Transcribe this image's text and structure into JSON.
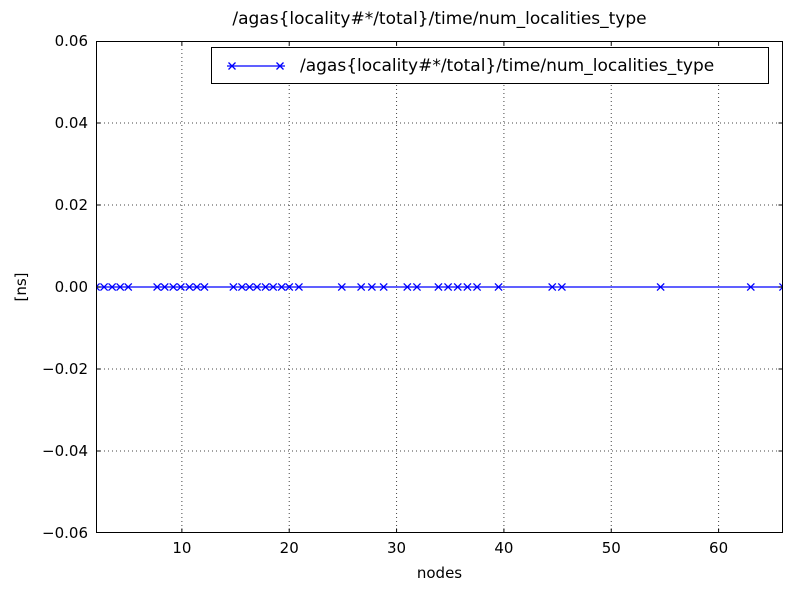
{
  "title": "/agas{locality#*/total}/time/num_localities_type",
  "legend": {
    "label": "/agas{locality#*/total}/time/num_localities_type",
    "marker": "x",
    "position": "upper center"
  },
  "axes": {
    "xlabel": "nodes",
    "ylabel": "[ns]",
    "xlim": [
      2,
      66
    ],
    "ylim": [
      -0.06,
      0.06
    ],
    "x_ticks": [
      {
        "v": 10,
        "label": "10"
      },
      {
        "v": 20,
        "label": "20"
      },
      {
        "v": 30,
        "label": "30"
      },
      {
        "v": 40,
        "label": "40"
      },
      {
        "v": 50,
        "label": "50"
      },
      {
        "v": 60,
        "label": "60"
      }
    ],
    "y_ticks": [
      {
        "v": 0.06,
        "label": "0.06"
      },
      {
        "v": 0.04,
        "label": "0.04"
      },
      {
        "v": 0.02,
        "label": "0.02"
      },
      {
        "v": 0.0,
        "label": "0.00"
      },
      {
        "v": -0.02,
        "label": "−0.02"
      },
      {
        "v": -0.04,
        "label": "−0.04"
      },
      {
        "v": -0.06,
        "label": "−0.06"
      }
    ],
    "grid": "dotted"
  },
  "colors": {
    "line": "#0000ff",
    "marker": "#0000ff",
    "grid": "#444444",
    "axis": "#000000",
    "background": "#ffffff"
  },
  "chart_data": {
    "type": "line",
    "title": "/agas{locality#*/total}/time/num_localities_type",
    "xlabel": "nodes",
    "ylabel": "[ns]",
    "xlim": [
      2,
      66
    ],
    "ylim": [
      -0.06,
      0.06
    ],
    "grid": true,
    "legend_position": "upper center",
    "series": [
      {
        "name": "/agas{locality#*/total}/time/num_localities_type",
        "marker": "x",
        "color": "#0000ff",
        "x": [
          2.0,
          2.75,
          3.5,
          4.25,
          5.0,
          7.7,
          8.4,
          9.2,
          9.9,
          10.7,
          11.4,
          12.1,
          14.8,
          15.6,
          16.3,
          17.0,
          17.8,
          18.5,
          19.3,
          20.0,
          20.9,
          24.9,
          26.7,
          27.7,
          28.8,
          31.0,
          31.9,
          33.9,
          34.8,
          35.7,
          36.6,
          37.5,
          39.5,
          44.5,
          45.4,
          54.6,
          63.0,
          66.0
        ],
        "y": [
          0,
          0,
          0,
          0,
          0,
          0,
          0,
          0,
          0,
          0,
          0,
          0,
          0,
          0,
          0,
          0,
          0,
          0,
          0,
          0,
          0,
          0,
          0,
          0,
          0,
          0,
          0,
          0,
          0,
          0,
          0,
          0,
          0,
          0,
          0,
          0,
          0,
          0
        ]
      }
    ]
  }
}
